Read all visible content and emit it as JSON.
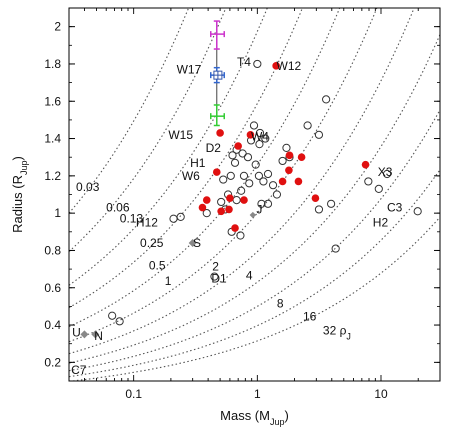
{
  "chart_data": {
    "type": "scatter",
    "xlabel_main": "Mass (M",
    "xlabel_sub": "Jup",
    "xlabel_close": ")",
    "ylabel_main": "Radius (R",
    "ylabel_sub": "Jup",
    "ylabel_close": ")",
    "x_scale": "log",
    "xlim": [
      0.03,
      30
    ],
    "ylim": [
      0.1,
      2.1
    ],
    "x_ticks": [
      {
        "value": 0.1,
        "label": "0.1"
      },
      {
        "value": 1,
        "label": "1"
      },
      {
        "value": 10,
        "label": "10"
      }
    ],
    "y_ticks": [
      {
        "value": 0.2,
        "label": "0.2"
      },
      {
        "value": 0.4,
        "label": "0.4"
      },
      {
        "value": 0.6,
        "label": "0.6"
      },
      {
        "value": 0.8,
        "label": "0.8"
      },
      {
        "value": 1.0,
        "label": "1"
      },
      {
        "value": 1.2,
        "label": "1.2"
      },
      {
        "value": 1.4,
        "label": "1.4"
      },
      {
        "value": 1.6,
        "label": "1.6"
      },
      {
        "value": 1.8,
        "label": "1.8"
      },
      {
        "value": 2.0,
        "label": "2"
      }
    ],
    "grid": false,
    "iso_density_curves": [
      {
        "density": 0.03,
        "label": "0.03",
        "label_at": [
          0.0425,
          1.14
        ]
      },
      {
        "density": 0.06,
        "label": "0.06",
        "label_at": [
          0.0745,
          1.03
        ]
      },
      {
        "density": 0.13,
        "label": "0.13",
        "label_at": [
          0.096,
          0.97
        ]
      },
      {
        "density": 0.25,
        "label": "0.25",
        "label_at": [
          0.14,
          0.84
        ]
      },
      {
        "density": 0.5,
        "label": "0.5",
        "label_at": [
          0.155,
          0.72
        ]
      },
      {
        "density": 1,
        "label": "1",
        "label_at": [
          0.19,
          0.635
        ]
      },
      {
        "density": 2,
        "label": "2",
        "label_at": [
          0.46,
          0.715
        ]
      },
      {
        "density": 4,
        "label": "4",
        "label_at": [
          0.86,
          0.665
        ]
      },
      {
        "density": 8,
        "label": "8",
        "label_at": [
          1.53,
          0.515
        ]
      },
      {
        "density": 16,
        "label": "16",
        "label_at": [
          2.65,
          0.445
        ]
      },
      {
        "density": 32,
        "label": "32 ρ",
        "sub": "J",
        "label_at": [
          4.4,
          0.37
        ]
      }
    ],
    "open_circles": [
      [
        0.021,
        0.17
      ],
      [
        0.067,
        0.45
      ],
      [
        0.077,
        0.42
      ],
      [
        0.21,
        0.97
      ],
      [
        0.24,
        0.98
      ],
      [
        0.45,
        0.66
      ],
      [
        0.39,
        1.0
      ],
      [
        0.55,
        1.02
      ],
      [
        0.62,
        0.9
      ],
      [
        0.73,
        0.88
      ],
      [
        0.51,
        1.06
      ],
      [
        0.58,
        1.1
      ],
      [
        0.68,
        1.07
      ],
      [
        0.74,
        1.12
      ],
      [
        0.53,
        1.18
      ],
      [
        0.61,
        1.2
      ],
      [
        0.66,
        1.27
      ],
      [
        0.78,
        1.2
      ],
      [
        0.86,
        1.16
      ],
      [
        0.63,
        1.31
      ],
      [
        0.68,
        1.34
      ],
      [
        0.76,
        1.32
      ],
      [
        0.84,
        1.3
      ],
      [
        0.97,
        1.26
      ],
      [
        0.89,
        1.39
      ],
      [
        1.04,
        1.37
      ],
      [
        1.16,
        1.4
      ],
      [
        0.94,
        1.47
      ],
      [
        1.05,
        1.43
      ],
      [
        1.03,
        1.2
      ],
      [
        1.12,
        1.17
      ],
      [
        1.22,
        1.21
      ],
      [
        1.34,
        1.15
      ],
      [
        1.08,
        1.05
      ],
      [
        1.22,
        1.05
      ],
      [
        1.44,
        1.1
      ],
      [
        1.6,
        1.28
      ],
      [
        1.72,
        1.35
      ],
      [
        1.82,
        1.3
      ],
      [
        2.55,
        1.47
      ],
      [
        3.15,
        1.42
      ],
      [
        3.6,
        1.61
      ],
      [
        1.0,
        1.8
      ],
      [
        3.15,
        1.02
      ],
      [
        3.95,
        1.05
      ],
      [
        4.3,
        0.81
      ],
      [
        9.6,
        1.13
      ],
      [
        11.2,
        1.21
      ],
      [
        19.8,
        1.01
      ],
      [
        7.9,
        1.17
      ]
    ],
    "filled_circles": [
      [
        0.36,
        1.03
      ],
      [
        0.39,
        1.07
      ],
      [
        0.47,
        1.22
      ],
      [
        0.5,
        1.43
      ],
      [
        0.7,
        1.36
      ],
      [
        0.88,
        1.42
      ],
      [
        1.42,
        1.79
      ],
      [
        0.51,
        1.01
      ],
      [
        0.59,
        1.02
      ],
      [
        0.6,
        1.08
      ],
      [
        0.66,
        0.92
      ],
      [
        0.78,
        1.07
      ],
      [
        1.6,
        1.17
      ],
      [
        1.8,
        1.23
      ],
      [
        1.82,
        1.31
      ],
      [
        2.15,
        1.17
      ],
      [
        2.28,
        1.3
      ],
      [
        2.95,
        1.08
      ],
      [
        7.5,
        1.26
      ]
    ],
    "open_squares": [
      [
        0.48,
        1.74
      ]
    ],
    "filled_diamonds": [
      [
        0.04,
        0.35
      ],
      [
        0.049,
        0.35
      ],
      [
        0.3,
        0.84
      ]
    ],
    "small_grey_diamonds": [
      [
        0.92,
        0.99
      ]
    ],
    "error_bar_points": [
      {
        "x": 0.47,
        "y": 1.96,
        "x_err": [
          0.42,
          0.54
        ],
        "y_err": [
          1.88,
          2.03
        ],
        "color": "#cc33cc"
      },
      {
        "x": 0.47,
        "y": 1.74,
        "x_err": [
          0.42,
          0.54
        ],
        "y_err": [
          1.7,
          1.78
        ],
        "color": "#3366cc"
      },
      {
        "x": 0.47,
        "y": 1.52,
        "x_err": [
          0.42,
          0.54
        ],
        "y_err": [
          1.47,
          1.58
        ],
        "color": "#33cc33"
      }
    ],
    "vertical_line": {
      "x": 0.47,
      "y_range": [
        1.5,
        2.03
      ]
    },
    "point_labels": [
      {
        "text": "T4",
        "at": [
          0.78,
          1.81
        ]
      },
      {
        "text": "W12",
        "at": [
          1.8,
          1.79
        ]
      },
      {
        "text": "W17",
        "at": [
          0.28,
          1.77
        ]
      },
      {
        "text": "W15",
        "at": [
          0.24,
          1.42
        ]
      },
      {
        "text": "W4",
        "at": [
          1.05,
          1.41
        ]
      },
      {
        "text": "D2",
        "at": [
          0.44,
          1.35
        ]
      },
      {
        "text": "H1",
        "at": [
          0.33,
          1.27
        ]
      },
      {
        "text": "W6",
        "at": [
          0.29,
          1.2
        ]
      },
      {
        "text": "X3",
        "at": [
          10.8,
          1.22
        ]
      },
      {
        "text": "C3",
        "at": [
          12.9,
          1.03
        ]
      },
      {
        "text": "H2",
        "at": [
          9.9,
          0.95
        ]
      },
      {
        "text": "J",
        "at": [
          1.04,
          1.02
        ]
      },
      {
        "text": "H12",
        "at": [
          0.128,
          0.95
        ]
      },
      {
        "text": "S",
        "at": [
          0.325,
          0.84
        ]
      },
      {
        "text": "D1",
        "at": [
          0.49,
          0.65
        ]
      },
      {
        "text": "U",
        "at": [
          0.0345,
          0.36
        ]
      },
      {
        "text": "N",
        "at": [
          0.052,
          0.34
        ]
      },
      {
        "text": "C7",
        "at": [
          0.036,
          0.16
        ]
      }
    ],
    "colors": {
      "filled": "#e01010",
      "open": "#333333",
      "diamond": "#888888",
      "curve": "#555555"
    }
  }
}
